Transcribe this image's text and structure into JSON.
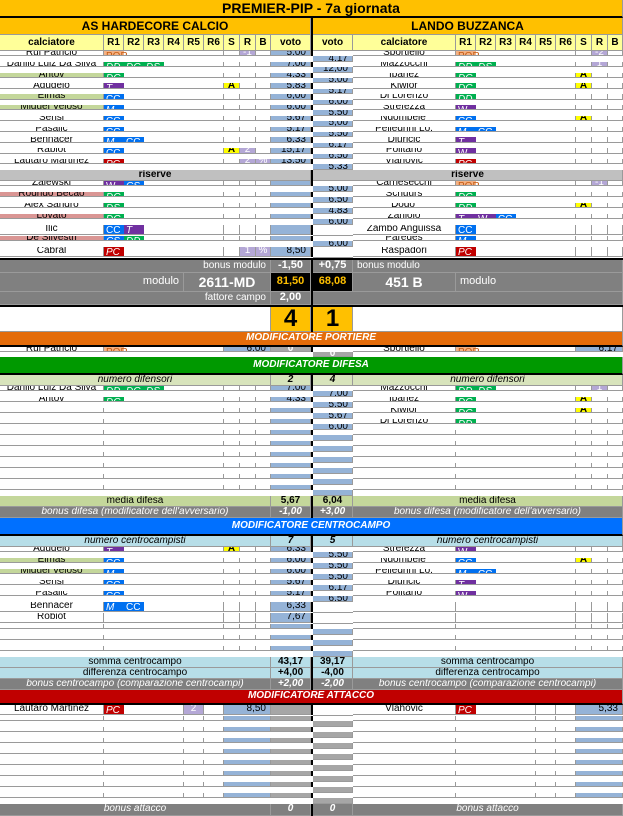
{
  "title": "PREMIER-PIP - 7a giornata",
  "teams": {
    "home": "AS HARDECORE CALCIO",
    "away": "LANDO BUZZANCA"
  },
  "columns": [
    "calciatore",
    "R1",
    "R2",
    "R3",
    "R4",
    "R5",
    "R6",
    "S",
    "R",
    "B",
    "voto"
  ],
  "colors": {
    "accent": "#ffc000",
    "voto": "#95b3d7",
    "portiere": "#e46c0a",
    "difesa": "#009900",
    "centrocampo": "#0070ff",
    "attacco": "#c00000"
  },
  "role_palette": {
    "POR": {
      "bg": "#f4b183",
      "fg": "#c55a11"
    },
    "DD": {
      "bg": "#00b050",
      "fg": "#ffffff"
    },
    "DC": {
      "bg": "#00b050",
      "fg": "#ffffff"
    },
    "DS": {
      "bg": "#00b050",
      "fg": "#ffffff"
    },
    "CC": {
      "bg": "#0070f0",
      "fg": "#ffffff"
    },
    "M": {
      "bg": "#0070f0",
      "fg": "#ffffff"
    },
    "CS": {
      "bg": "#0070f0",
      "fg": "#ffffff"
    },
    "T": {
      "bg": "#7030a0",
      "fg": "#ffffff"
    },
    "W": {
      "bg": "#7030a0",
      "fg": "#ffffff"
    },
    "PC": {
      "bg": "#c00000",
      "fg": "#ffffff"
    }
  },
  "highlight_colors": {
    "green": "#c4d79b",
    "pink": "#da9694"
  },
  "home": {
    "starters": [
      {
        "name": "Rui Patricio",
        "roles": [
          "POR"
        ],
        "r": "-1",
        "voto": "5,00"
      },
      {
        "name": "Danilo Luiz Da Silva",
        "roles": [
          "DD",
          "DC",
          "DS"
        ],
        "voto": "7,00"
      },
      {
        "name": "Antov",
        "roles": [
          "DC"
        ],
        "voto": "4,33",
        "hl": "green"
      },
      {
        "name": "Agudelo",
        "roles": [
          "T"
        ],
        "s": "A",
        "voto": "5,83"
      },
      {
        "name": "Elmas",
        "roles": [
          "CC"
        ],
        "voto": "6,00",
        "hl": "green"
      },
      {
        "name": "Miguel Veloso",
        "roles": [
          "M"
        ],
        "voto": "6,00",
        "hl": "green"
      },
      {
        "name": "Sensi",
        "roles": [
          "CC"
        ],
        "voto": "5,67"
      },
      {
        "name": "Pasalic",
        "roles": [
          "CC"
        ],
        "voto": "5,17"
      },
      {
        "name": "Bennacer",
        "roles": [
          "M",
          "CC"
        ],
        "voto": "6,33"
      },
      {
        "name": "Rabiot",
        "roles": [
          "CC"
        ],
        "s": "A",
        "r": "2",
        "voto": "15,17"
      },
      {
        "name": "Lautaro Martinez",
        "roles": [
          "PC"
        ],
        "r": "2",
        "b": "%",
        "voto": "13,50"
      }
    ],
    "reserves": [
      {
        "name": "Zalewski",
        "roles": [
          "W",
          "CS"
        ]
      },
      {
        "name": "Rodrigo Becao",
        "roles": [
          "DC"
        ],
        "hl": "pink"
      },
      {
        "name": "Alex Sandro",
        "roles": [
          "DS"
        ]
      },
      {
        "name": "Lovato",
        "roles": [
          "DC"
        ],
        "hl": "pink"
      },
      {
        "name": "Ilic",
        "roles": [
          "CC",
          "T"
        ]
      },
      {
        "name": "De Silvestri",
        "roles": [
          "CS",
          "DD"
        ],
        "hl": "pink"
      },
      {
        "name": "Cabral",
        "roles": [
          "PC"
        ],
        "r": "1",
        "b": "%",
        "voto": "8,50"
      }
    ],
    "bonus_modulo": "-1,50",
    "modulo": "2611-MD",
    "total": "81,50",
    "fattore_campo": "2,00",
    "goals": "4",
    "portiere": {
      "name": "Rui Patricio",
      "roles": [
        "POR"
      ],
      "voto": "6,00",
      "mod": "0"
    },
    "difesa": {
      "count": "2",
      "players": [
        {
          "name": "Danilo Luiz Da Silva",
          "roles": [
            "DD",
            "DC",
            "DS"
          ],
          "voto": "7,00"
        },
        {
          "name": "Antov",
          "roles": [
            "DC"
          ],
          "voto": "4,33"
        }
      ],
      "media": "5,67",
      "bonus": "-1,00"
    },
    "centrocampo": {
      "count": "7",
      "players": [
        {
          "name": "Agudelo",
          "roles": [
            "T"
          ],
          "s": "A",
          "voto": "6,33"
        },
        {
          "name": "Elmas",
          "roles": [
            "CC"
          ],
          "voto": "6,00",
          "hl": "green"
        },
        {
          "name": "Miguel Veloso",
          "roles": [
            "M"
          ],
          "voto": "6,00",
          "hl": "green"
        },
        {
          "name": "Sensi",
          "roles": [
            "CC"
          ],
          "voto": "5,67"
        },
        {
          "name": "Pasalic",
          "roles": [
            "CC"
          ],
          "voto": "5,17"
        },
        {
          "name": "Bennacer",
          "roles": [
            "M",
            "CC"
          ],
          "voto": "6,33"
        },
        {
          "name": "Robiot",
          "roles": [],
          "voto": "7,67"
        }
      ],
      "somma": "43,17",
      "differenza": "+4,00",
      "bonus": "+2,00"
    },
    "attacco": {
      "players": [
        {
          "name": "Lautaro Martinez",
          "roles": [
            "PC"
          ],
          "r": "2",
          "voto": "8,50"
        }
      ],
      "bonus": "0"
    }
  },
  "away": {
    "starters": [
      {
        "name": "Sportiello",
        "roles": [
          "POR"
        ],
        "r": "-2",
        "voto": "4,17"
      },
      {
        "name": "Mazzocchi",
        "roles": [
          "DD",
          "DS"
        ],
        "r": "1",
        "voto": "12,00"
      },
      {
        "name": "Ibanez",
        "roles": [
          "DC"
        ],
        "s": "A",
        "voto": "5,00"
      },
      {
        "name": "Kiwior",
        "roles": [
          "DC"
        ],
        "s": "A",
        "voto": "5,17"
      },
      {
        "name": "Di Lorenzo",
        "roles": [
          "DD"
        ],
        "voto": "6,00"
      },
      {
        "name": "Strefezza",
        "roles": [
          "W"
        ],
        "voto": "5,50"
      },
      {
        "name": "Ndombele'",
        "roles": [
          "CC"
        ],
        "s": "A",
        "voto": "5,00"
      },
      {
        "name": "Pellegrini Lo.",
        "roles": [
          "M",
          "CC"
        ],
        "voto": "5,50"
      },
      {
        "name": "Djuricic",
        "roles": [
          "T"
        ],
        "voto": "6,17"
      },
      {
        "name": "Politano",
        "roles": [
          "W"
        ],
        "voto": "6,50"
      },
      {
        "name": "Vlahovic",
        "roles": [
          "PC"
        ],
        "voto": "5,33"
      }
    ],
    "reserves": [
      {
        "name": "Carnesecchi",
        "roles": [
          "POR"
        ],
        "r": "-1",
        "voto": "5,00"
      },
      {
        "name": "Schuurs",
        "roles": [
          "DC"
        ],
        "voto": "6,50"
      },
      {
        "name": "Dodo'",
        "roles": [
          "DD"
        ],
        "s": "A",
        "voto": "4,83"
      },
      {
        "name": "Zaniolo",
        "roles": [
          "T",
          "W",
          "CC"
        ],
        "voto": "6,00"
      },
      {
        "name": "Zambo Anguissa",
        "roles": [
          "CC"
        ]
      },
      {
        "name": "Paredes",
        "roles": [
          "M"
        ],
        "voto": "6,00"
      },
      {
        "name": "Raspadori",
        "roles": [
          "PC"
        ]
      }
    ],
    "bonus_modulo": "+0,75",
    "modulo": "451 B",
    "total": "68,08",
    "goals": "1",
    "portiere": {
      "name": "Sportiello",
      "roles": [
        "POR"
      ],
      "voto": "6,17",
      "mod": "0"
    },
    "difesa": {
      "count": "4",
      "players": [
        {
          "name": "Mazzocchi",
          "roles": [
            "DD",
            "DS"
          ],
          "r": "1",
          "voto": "7,00"
        },
        {
          "name": "Ibanez",
          "roles": [
            "DC"
          ],
          "s": "A",
          "voto": "5,50"
        },
        {
          "name": "Kiwior",
          "roles": [
            "DC"
          ],
          "s": "A",
          "voto": "5,67"
        },
        {
          "name": "Di Lorenzo",
          "roles": [
            "DD"
          ],
          "voto": "6,00"
        }
      ],
      "media": "6,04",
      "bonus": "+3,00"
    },
    "centrocampo": {
      "count": "5",
      "players": [
        {
          "name": "Strefezza",
          "roles": [
            "W"
          ],
          "voto": "5,50"
        },
        {
          "name": "Ndombele'",
          "roles": [
            "CC"
          ],
          "s": "A",
          "voto": "5,50"
        },
        {
          "name": "Pellegrini Lo.",
          "roles": [
            "M",
            "CC"
          ],
          "voto": "5,50"
        },
        {
          "name": "Djuricic",
          "roles": [
            "T"
          ],
          "voto": "6,17"
        },
        {
          "name": "Politano",
          "roles": [
            "W"
          ],
          "voto": "6,50"
        }
      ],
      "somma": "39,17",
      "differenza": "-4,00",
      "bonus": "-2,00"
    },
    "attacco": {
      "players": [
        {
          "name": "Vlahovic",
          "roles": [
            "PC"
          ],
          "voto": "5,33"
        }
      ],
      "bonus": "0"
    }
  },
  "labels": {
    "riserve": "riserve",
    "bonus_modulo": "bonus modulo",
    "modulo": "modulo",
    "fattore_campo": "fattore campo",
    "mod_portiere": "MODIFICATORE PORTIERE",
    "mod_difesa": "MODIFICATORE DIFESA",
    "numero_difensori": "numero difensori",
    "media_difesa": "media difesa",
    "bonus_difesa": "bonus difesa (modificatore dell'avversario)",
    "mod_centrocampo": "MODIFICATORE CENTROCAMPO",
    "numero_centrocampisti": "numero centrocampisti",
    "somma_centrocampo": "somma centrocampo",
    "differenza_centrocampo": "differenza centrocampo",
    "bonus_centrocampo": "bonus centrocampo (comparazione centrocampi)",
    "mod_attacco": "MODIFICATORE ATTACCO",
    "bonus_attacco": "bonus attacco"
  }
}
